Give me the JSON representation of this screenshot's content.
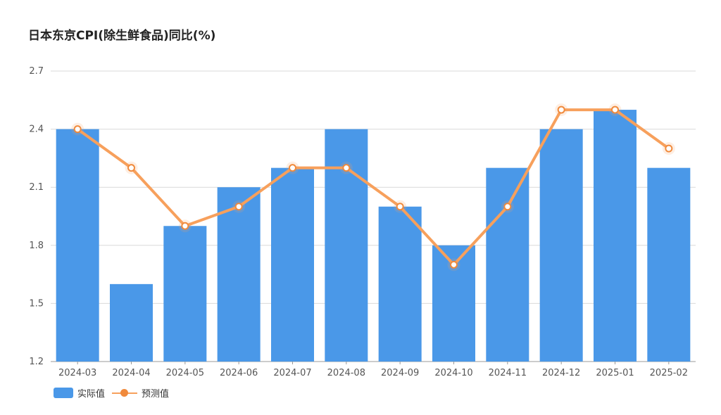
{
  "chart_data": {
    "type": "bar",
    "title": "日本东京CPI(除生鲜食品)同比(%)",
    "categories": [
      "2024-03",
      "2024-04",
      "2024-05",
      "2024-06",
      "2024-07",
      "2024-08",
      "2024-09",
      "2024-10",
      "2024-11",
      "2024-12",
      "2025-01",
      "2025-02"
    ],
    "series": [
      {
        "name": "实际值",
        "type": "bar",
        "color": "#4a98e8",
        "values": [
          2.4,
          1.6,
          1.9,
          2.1,
          2.2,
          2.4,
          2.0,
          1.8,
          2.2,
          2.4,
          2.5,
          2.2
        ]
      },
      {
        "name": "预测值",
        "type": "line",
        "color": "#f7a05c",
        "values": [
          2.4,
          2.2,
          1.9,
          2.0,
          2.2,
          2.2,
          2.0,
          1.7,
          2.0,
          2.5,
          2.5,
          2.3
        ]
      }
    ],
    "yticks": [
      "1.2",
      "1.5",
      "1.8",
      "2.1",
      "2.4",
      "2.7"
    ],
    "ylim": [
      1.2,
      2.7
    ],
    "grid": true,
    "legend_position": "bottom-left"
  }
}
